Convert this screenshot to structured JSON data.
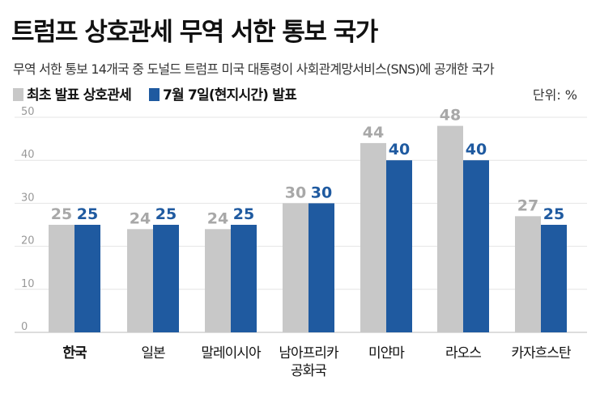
{
  "title": "트럼프 상호관세 무역 서한 통보 국가",
  "subtitle": "무역 서한 통보 14개국 중 도널드 트럼프 미국 대통령이 사회관계망서비스(SNS)에 공개한 국가",
  "unit": "단위: %",
  "colors": {
    "initial": "#c8c8c8",
    "july": "#1f5aa0",
    "initial_label": "#a8a8a8"
  },
  "chart_data": {
    "type": "bar",
    "title": "트럼프 상호관세 무역 서한 통보 국가",
    "xlabel": "",
    "ylabel": "%",
    "ylim": [
      0,
      50
    ],
    "yticks": [
      "0",
      "10",
      "20",
      "30",
      "40",
      "50"
    ],
    "grid": true,
    "legend_position": "top-left",
    "categories": [
      "한국",
      "일본",
      "말레이시아",
      "남아프리카 공화국",
      "미얀마",
      "라오스",
      "카자흐스탄"
    ],
    "series": [
      {
        "name": "최초 발표 상호관세",
        "values": [
          25,
          24,
          24,
          30,
          44,
          48,
          27
        ]
      },
      {
        "name": "7월 7일(현지시간) 발표",
        "values": [
          25,
          25,
          25,
          30,
          40,
          40,
          25
        ]
      }
    ]
  }
}
